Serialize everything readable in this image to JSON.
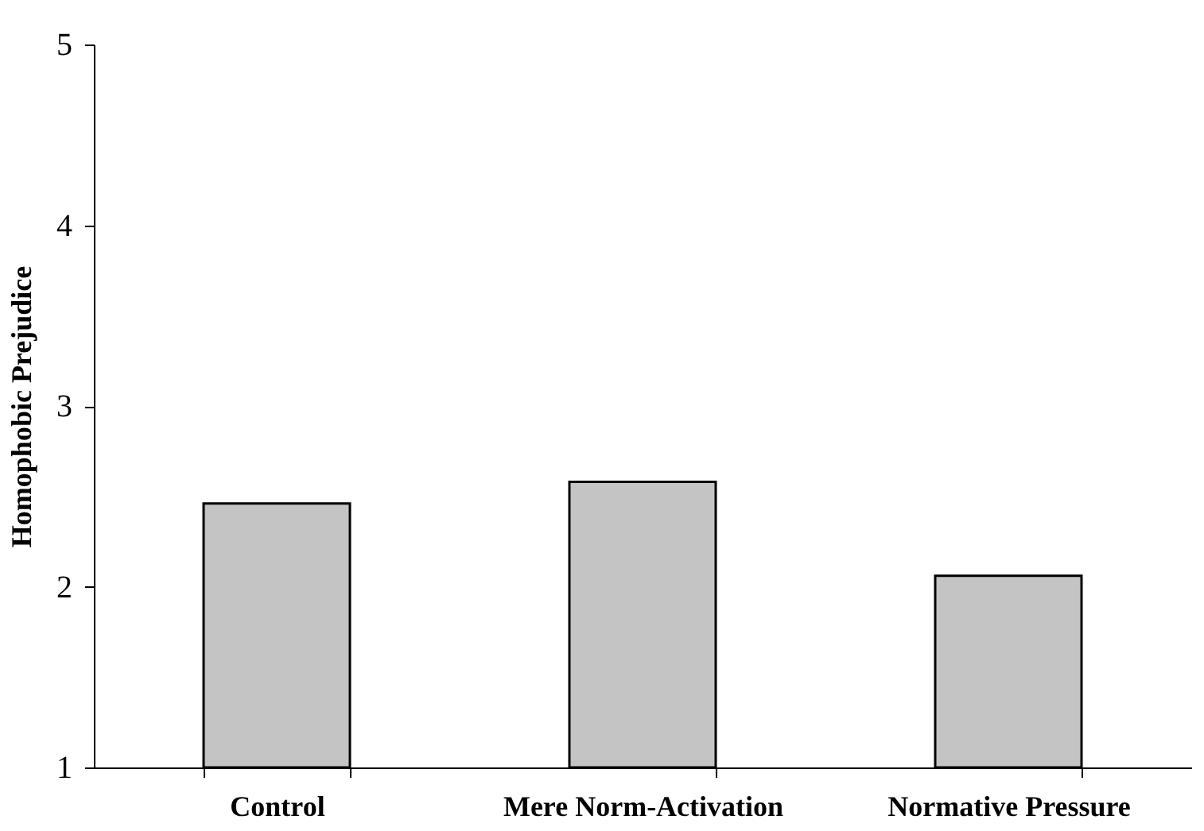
{
  "chart_data": {
    "type": "bar",
    "ylabel": "Homophobic Prejudice",
    "categories": [
      "Control",
      "Mere Norm-Activation",
      "Normative Pressure"
    ],
    "values": [
      2.46,
      2.58,
      2.06
    ],
    "color": "#c4c4c4",
    "ylim": [
      1,
      5
    ],
    "yticks": [
      1,
      2,
      3,
      4,
      5
    ],
    "grid": false
  }
}
